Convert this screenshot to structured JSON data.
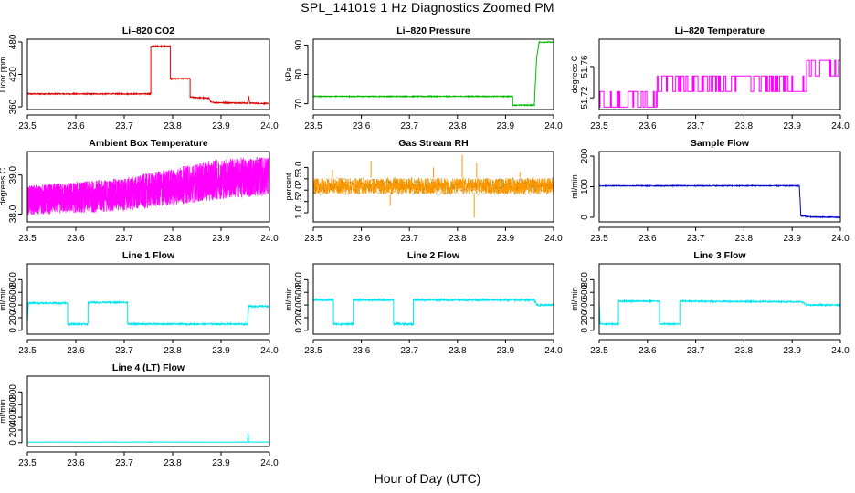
{
  "figure": {
    "title": "SPL_141019  1 Hz Diagnostics Zoomed PM",
    "xlabel": "Hour of Day (UTC)"
  },
  "chart_data": [
    {
      "type": "line",
      "title": "Li–820 CO2",
      "xlabel": "",
      "ylabel": "Licor ppm",
      "color": "#dd0000",
      "xlim": [
        23.5,
        24.0
      ],
      "ylim": [
        355,
        485
      ],
      "xticks": [
        23.5,
        23.6,
        23.7,
        23.8,
        23.9,
        24.0
      ],
      "xtick_labels": [
        "23.5",
        "23.6",
        "23.7",
        "23.8",
        "23.9",
        "24.0"
      ],
      "yticks": [
        360,
        420,
        480
      ],
      "ytick_labels": [
        "360",
        "420",
        "480"
      ],
      "noise": 1.0,
      "step": true,
      "points": [
        [
          23.5,
          384
        ],
        [
          23.755,
          384
        ],
        [
          23.755,
          472
        ],
        [
          23.795,
          472
        ],
        [
          23.795,
          412
        ],
        [
          23.836,
          412
        ],
        [
          23.836,
          378
        ],
        [
          23.875,
          376
        ],
        [
          23.88,
          368
        ],
        [
          23.955,
          367
        ],
        [
          23.957,
          380
        ],
        [
          23.959,
          367
        ],
        [
          24.0,
          366
        ]
      ]
    },
    {
      "type": "line",
      "title": "Li–820 Pressure",
      "xlabel": "",
      "ylabel": "kPa",
      "color": "#00bb00",
      "xlim": [
        23.5,
        24.0
      ],
      "ylim": [
        68,
        92
      ],
      "xticks": [
        23.5,
        23.6,
        23.7,
        23.8,
        23.9,
        24.0
      ],
      "xtick_labels": [
        "23.5",
        "23.6",
        "23.7",
        "23.8",
        "23.9",
        "24.0"
      ],
      "yticks": [
        70,
        80,
        90
      ],
      "ytick_labels": [
        "70",
        "80",
        "90"
      ],
      "noise": 0.15,
      "step": true,
      "points": [
        [
          23.5,
          72.5
        ],
        [
          23.915,
          72.5
        ],
        [
          23.915,
          69.5
        ],
        [
          23.96,
          69.5
        ],
        [
          23.965,
          86
        ],
        [
          23.97,
          91
        ],
        [
          24.0,
          91
        ]
      ]
    },
    {
      "type": "line",
      "title": "Li–820 Temperature",
      "xlabel": "",
      "ylabel": "degrees C",
      "color": "#ff00ff",
      "xlim": [
        23.5,
        24.0
      ],
      "ylim": [
        51.705,
        51.795
      ],
      "xticks": [
        23.5,
        23.6,
        23.7,
        23.8,
        23.9,
        24.0
      ],
      "xtick_labels": [
        "23.5",
        "23.6",
        "23.7",
        "23.8",
        "23.9",
        "24.0"
      ],
      "yticks": [
        51.72,
        51.76
      ],
      "ytick_labels": [
        "51.72",
        "51.76"
      ],
      "quantized": [
        51.708,
        51.728,
        51.748,
        51.768,
        51.788
      ],
      "segments": [
        [
          23.5,
          23.62,
          0,
          1,
          0.5
        ],
        [
          23.62,
          23.93,
          1,
          2,
          0.55
        ],
        [
          23.93,
          24.0,
          2,
          3,
          0.5
        ]
      ]
    },
    {
      "type": "line",
      "title": "Ambient Box Temperature",
      "xlabel": "",
      "ylabel": "degrees C",
      "color": "#ff00ff",
      "xlim": [
        23.5,
        24.0
      ],
      "ylim": [
        37.8,
        39.6
      ],
      "xticks": [
        23.5,
        23.6,
        23.7,
        23.8,
        23.9,
        24.0
      ],
      "xtick_labels": [
        "23.5",
        "23.6",
        "23.7",
        "23.8",
        "23.9",
        "24.0"
      ],
      "yticks": [
        38.0,
        39.0
      ],
      "ytick_labels": [
        "38.0",
        "39.0"
      ],
      "band": [
        [
          23.5,
          37.95,
          38.75
        ],
        [
          23.7,
          38.05,
          38.95
        ],
        [
          23.9,
          38.35,
          39.45
        ],
        [
          24.0,
          38.45,
          39.5
        ]
      ],
      "band_density": 1.0
    },
    {
      "type": "line",
      "title": "Gas Stream RH",
      "xlabel": "",
      "ylabel": "percent",
      "color": "#ff9900",
      "color2": "#a07000",
      "xlim": [
        23.5,
        24.0
      ],
      "ylim": [
        0.6,
        3.7
      ],
      "xticks": [
        23.5,
        23.6,
        23.7,
        23.8,
        23.9,
        24.0
      ],
      "xtick_labels": [
        "23.5",
        "23.6",
        "23.7",
        "23.8",
        "23.9",
        "24.0"
      ],
      "yticks": [
        1.0,
        1.5,
        2.0,
        2.5,
        3.0
      ],
      "ytick_labels": [
        "1.0",
        "1.5",
        "2.0",
        "2.5",
        "3.0"
      ],
      "band": [
        [
          23.5,
          1.8,
          2.55
        ],
        [
          24.0,
          1.8,
          2.55
        ]
      ],
      "band_density": 0.5,
      "spikes": [
        [
          23.54,
          2.9
        ],
        [
          23.62,
          3.3
        ],
        [
          23.66,
          1.3
        ],
        [
          23.75,
          3.0
        ],
        [
          23.81,
          3.55
        ],
        [
          23.835,
          0.8
        ],
        [
          23.84,
          3.2
        ],
        [
          23.93,
          2.8
        ]
      ]
    },
    {
      "type": "line",
      "title": "Sample Flow",
      "xlabel": "",
      "ylabel": "ml/min",
      "color": "#0000cc",
      "xlim": [
        23.5,
        24.0
      ],
      "ylim": [
        -15,
        215
      ],
      "xticks": [
        23.5,
        23.6,
        23.7,
        23.8,
        23.9,
        24.0
      ],
      "xtick_labels": [
        "23.5",
        "23.6",
        "23.7",
        "23.8",
        "23.9",
        "24.0"
      ],
      "yticks": [
        0,
        100,
        200
      ],
      "ytick_labels": [
        "0",
        "100",
        "200"
      ],
      "noise": 1.5,
      "step": true,
      "points": [
        [
          23.5,
          103
        ],
        [
          23.915,
          103
        ],
        [
          23.918,
          5
        ],
        [
          23.94,
          1
        ],
        [
          24.0,
          0
        ]
      ]
    },
    {
      "type": "line",
      "title": "Line 1 Flow",
      "xlabel": "",
      "ylabel": "ml/min",
      "color": "#00e5ee",
      "xlim": [
        23.5,
        24.0
      ],
      "ylim": [
        -60,
        1050
      ],
      "xticks": [
        23.5,
        23.6,
        23.7,
        23.8,
        23.9,
        24.0
      ],
      "xtick_labels": [
        "23.5",
        "23.6",
        "23.7",
        "23.8",
        "23.9",
        "24.0"
      ],
      "yticks": [
        0,
        200,
        400,
        600,
        800
      ],
      "ytick_labels": [
        "0",
        "200",
        "400",
        "600",
        "800"
      ],
      "noise": 12,
      "step": true,
      "points": [
        [
          23.5,
          100
        ],
        [
          23.502,
          430
        ],
        [
          23.583,
          430
        ],
        [
          23.583,
          100
        ],
        [
          23.625,
          100
        ],
        [
          23.625,
          440
        ],
        [
          23.707,
          440
        ],
        [
          23.707,
          100
        ],
        [
          23.955,
          100
        ],
        [
          23.957,
          380
        ],
        [
          24.0,
          380
        ]
      ]
    },
    {
      "type": "line",
      "title": "Line 2 Flow",
      "xlabel": "",
      "ylabel": "ml/min",
      "color": "#00e5ee",
      "xlim": [
        23.5,
        24.0
      ],
      "ylim": [
        -60,
        1050
      ],
      "xticks": [
        23.5,
        23.6,
        23.7,
        23.8,
        23.9,
        24.0
      ],
      "xtick_labels": [
        "23.5",
        "23.6",
        "23.7",
        "23.8",
        "23.9",
        "24.0"
      ],
      "yticks": [
        0,
        200,
        400,
        600,
        800
      ],
      "ytick_labels": [
        "0",
        "200",
        "400",
        "600",
        "800"
      ],
      "noise": 14,
      "step": true,
      "points": [
        [
          23.5,
          480
        ],
        [
          23.542,
          480
        ],
        [
          23.542,
          100
        ],
        [
          23.583,
          100
        ],
        [
          23.583,
          480
        ],
        [
          23.667,
          480
        ],
        [
          23.667,
          100
        ],
        [
          23.708,
          100
        ],
        [
          23.708,
          480
        ],
        [
          23.96,
          480
        ],
        [
          23.965,
          400
        ],
        [
          24.0,
          400
        ]
      ]
    },
    {
      "type": "line",
      "title": "Line 3 Flow",
      "xlabel": "",
      "ylabel": "ml/min",
      "color": "#00e5ee",
      "xlim": [
        23.5,
        24.0
      ],
      "ylim": [
        -60,
        1050
      ],
      "xticks": [
        23.5,
        23.6,
        23.7,
        23.8,
        23.9,
        24.0
      ],
      "xtick_labels": [
        "23.5",
        "23.6",
        "23.7",
        "23.8",
        "23.9",
        "24.0"
      ],
      "yticks": [
        0,
        200,
        400,
        600,
        800
      ],
      "ytick_labels": [
        "0",
        "200",
        "400",
        "600",
        "800"
      ],
      "noise": 10,
      "step": true,
      "points": [
        [
          23.5,
          440
        ],
        [
          23.502,
          100
        ],
        [
          23.54,
          100
        ],
        [
          23.54,
          460
        ],
        [
          23.625,
          460
        ],
        [
          23.625,
          100
        ],
        [
          23.667,
          100
        ],
        [
          23.667,
          460
        ],
        [
          23.92,
          450
        ],
        [
          23.93,
          400
        ],
        [
          24.0,
          400
        ]
      ]
    },
    {
      "type": "line",
      "title": "Line 4 (LT) Flow",
      "xlabel": "",
      "ylabel": "ml/min",
      "color": "#00e5ee",
      "xlim": [
        23.5,
        24.0
      ],
      "ylim": [
        -60,
        1050
      ],
      "xticks": [
        23.5,
        23.6,
        23.7,
        23.8,
        23.9,
        24.0
      ],
      "xtick_labels": [
        "23.5",
        "23.6",
        "23.7",
        "23.8",
        "23.9",
        "24.0"
      ],
      "yticks": [
        0,
        200,
        400,
        600,
        800
      ],
      "ytick_labels": [
        "0",
        "200",
        "400",
        "600",
        "800"
      ],
      "noise": 2,
      "step": true,
      "points": [
        [
          23.5,
          10
        ],
        [
          23.955,
          10
        ],
        [
          23.956,
          160
        ],
        [
          23.957,
          10
        ],
        [
          24.0,
          10
        ]
      ]
    }
  ]
}
